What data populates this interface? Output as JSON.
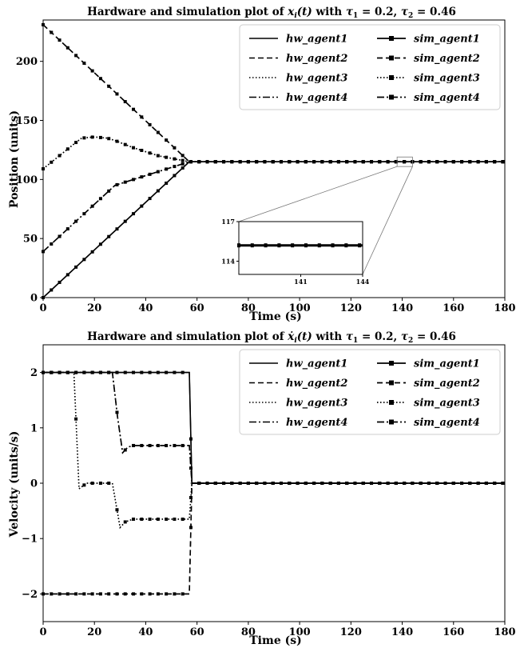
{
  "chart_data": [
    {
      "type": "line",
      "title": "Hardware and simulation plot of x_i(t) with τ_1 = 0.2, τ_2 = 0.46",
      "title_parts": {
        "prefix": "Hardware and simulation plot of ",
        "var": "x",
        "sub": "i",
        "arg": "(t)",
        "with": " with ",
        "tau": "τ",
        "t1sub": "1",
        "t1val": " = 0.2, ",
        "t2sub": "2",
        "t2val": " = 0.46"
      },
      "xlabel": "Time (s)",
      "ylabel": "Position (units)",
      "xlim": [
        0,
        180
      ],
      "ylim": [
        0,
        235
      ],
      "xticks": [
        0,
        20,
        40,
        60,
        80,
        100,
        120,
        140,
        160,
        180
      ],
      "yticks": [
        0,
        50,
        100,
        150,
        200
      ],
      "grid": false,
      "legend_position": "top-right",
      "series": [
        {
          "name": "hw_agent1",
          "style": "solid",
          "x": [
            0,
            57,
            180
          ],
          "y": [
            0,
            115,
            115
          ]
        },
        {
          "name": "hw_agent2",
          "style": "dashed",
          "x": [
            0,
            57,
            180
          ],
          "y": [
            231,
            115,
            115
          ]
        },
        {
          "name": "hw_agent3",
          "style": "dotted",
          "x": [
            0,
            12,
            15,
            20,
            25,
            28,
            35,
            45,
            57,
            180
          ],
          "y": [
            109,
            130,
            135,
            136,
            135,
            133,
            127,
            120,
            115,
            115
          ]
        },
        {
          "name": "hw_agent4",
          "style": "dashdot",
          "x": [
            0,
            28,
            57,
            180
          ],
          "y": [
            39,
            95,
            115,
            115
          ]
        },
        {
          "name": "sim_agent1",
          "style": "solid",
          "x": [
            0,
            57,
            180
          ],
          "y": [
            0,
            115,
            115
          ]
        },
        {
          "name": "sim_agent2",
          "style": "dashed",
          "x": [
            0,
            57,
            180
          ],
          "y": [
            231,
            115,
            115
          ]
        },
        {
          "name": "sim_agent3",
          "style": "dotted",
          "x": [
            0,
            12,
            15,
            20,
            25,
            28,
            35,
            45,
            57,
            180
          ],
          "y": [
            109,
            130,
            135,
            136,
            135,
            133,
            127,
            120,
            115,
            115
          ]
        },
        {
          "name": "sim_agent4",
          "style": "dashdot",
          "x": [
            0,
            28,
            57,
            180
          ],
          "y": [
            39,
            95,
            115,
            115
          ]
        }
      ],
      "inset": {
        "xlim": [
          138,
          144
        ],
        "ylim": [
          113,
          117
        ],
        "xticks": [
          141,
          144
        ],
        "yticks": [
          114,
          117
        ],
        "value": 115.2
      }
    },
    {
      "type": "line",
      "title": "Hardware and simulation plot of ẋ_i(t) with τ_1 = 0.2, τ_2 = 0.46",
      "title_parts": {
        "prefix": "Hardware and simulation plot of ",
        "var": "ẋ",
        "sub": "i",
        "arg": "(t)",
        "with": " with ",
        "tau": "τ",
        "t1sub": "1",
        "t1val": " = 0.2, ",
        "t2sub": "2",
        "t2val": " = 0.46"
      },
      "xlabel": "Time (s)",
      "ylabel": "Velocity (units/s)",
      "xlim": [
        0,
        180
      ],
      "ylim": [
        -2.5,
        2.5
      ],
      "xticks": [
        0,
        20,
        40,
        60,
        80,
        100,
        120,
        140,
        160,
        180
      ],
      "yticks": [
        -2,
        -1,
        0,
        1,
        2
      ],
      "ytick_labels": [
        "−2",
        "−1",
        "0",
        "1",
        "2"
      ],
      "grid": false,
      "legend_position": "top-right",
      "series": [
        {
          "name": "hw_agent1",
          "style": "solid",
          "x": [
            0,
            57,
            58,
            180
          ],
          "y": [
            2,
            2,
            0,
            0
          ]
        },
        {
          "name": "hw_agent2",
          "style": "dashed",
          "x": [
            0,
            57,
            58,
            180
          ],
          "y": [
            -2,
            -2,
            0,
            0
          ]
        },
        {
          "name": "hw_agent3",
          "style": "dotted",
          "x": [
            0,
            12,
            14,
            17,
            27,
            30,
            32,
            35,
            57,
            58,
            180
          ],
          "y": [
            2,
            2,
            -0.1,
            0,
            0,
            -0.8,
            -0.7,
            -0.65,
            -0.65,
            0,
            0
          ]
        },
        {
          "name": "hw_agent4",
          "style": "dashdot",
          "x": [
            0,
            27,
            29,
            31,
            33,
            35,
            57,
            58,
            180
          ],
          "y": [
            2,
            2,
            1.2,
            0.55,
            0.65,
            0.68,
            0.68,
            0,
            0
          ]
        },
        {
          "name": "sim_agent1",
          "style": "solid",
          "x": [
            0,
            57,
            58,
            180
          ],
          "y": [
            2,
            2,
            0,
            0
          ]
        },
        {
          "name": "sim_agent2",
          "style": "dashed",
          "x": [
            0,
            57,
            58,
            180
          ],
          "y": [
            -2,
            -2,
            0,
            0
          ]
        },
        {
          "name": "sim_agent3",
          "style": "dotted",
          "x": [
            0,
            12,
            14,
            17,
            27,
            30,
            32,
            35,
            57,
            58,
            180
          ],
          "y": [
            2,
            2,
            -0.1,
            0,
            0,
            -0.8,
            -0.7,
            -0.65,
            -0.65,
            0,
            0
          ]
        },
        {
          "name": "sim_agent4",
          "style": "dashdot",
          "x": [
            0,
            27,
            29,
            31,
            33,
            35,
            57,
            58,
            180
          ],
          "y": [
            2,
            2,
            1.2,
            0.55,
            0.65,
            0.68,
            0.68,
            0,
            0
          ]
        }
      ]
    }
  ]
}
